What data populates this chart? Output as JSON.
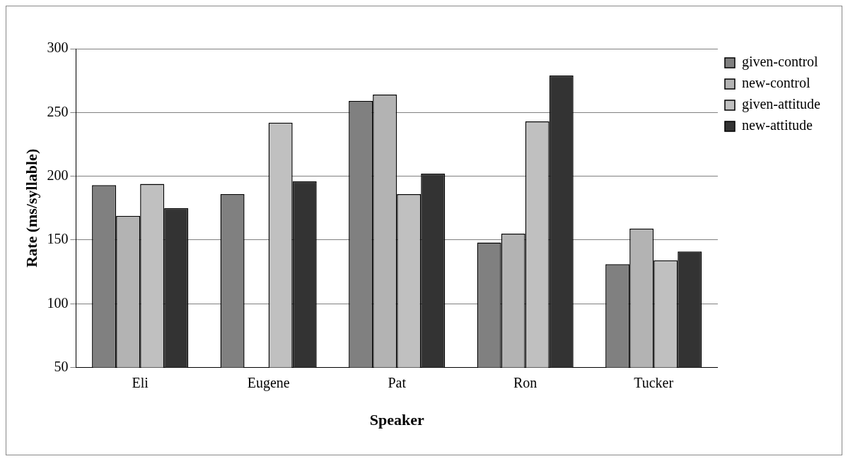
{
  "chart_data": {
    "type": "bar",
    "xlabel": "Speaker",
    "ylabel": "Rate (ms/syllable)",
    "categories": [
      "Eli",
      "Eugene",
      "Pat",
      "Ron",
      "Tucker"
    ],
    "series": [
      {
        "name": "given-control",
        "color": "#808080",
        "values": [
          193,
          186,
          259,
          148,
          131
        ]
      },
      {
        "name": "new-control",
        "color": "#b3b3b3",
        "values": [
          169,
          null,
          264,
          155,
          159
        ]
      },
      {
        "name": "given-attitude",
        "color": "#c0c0c0",
        "values": [
          194,
          242,
          186,
          243,
          134
        ]
      },
      {
        "name": "new-attitude",
        "color": "#333333",
        "values": [
          175,
          196,
          202,
          279,
          141
        ]
      }
    ],
    "ylim": [
      50,
      300
    ],
    "yticks": [
      50,
      100,
      150,
      200,
      250,
      300
    ],
    "grid": "y",
    "legend": "top right"
  }
}
